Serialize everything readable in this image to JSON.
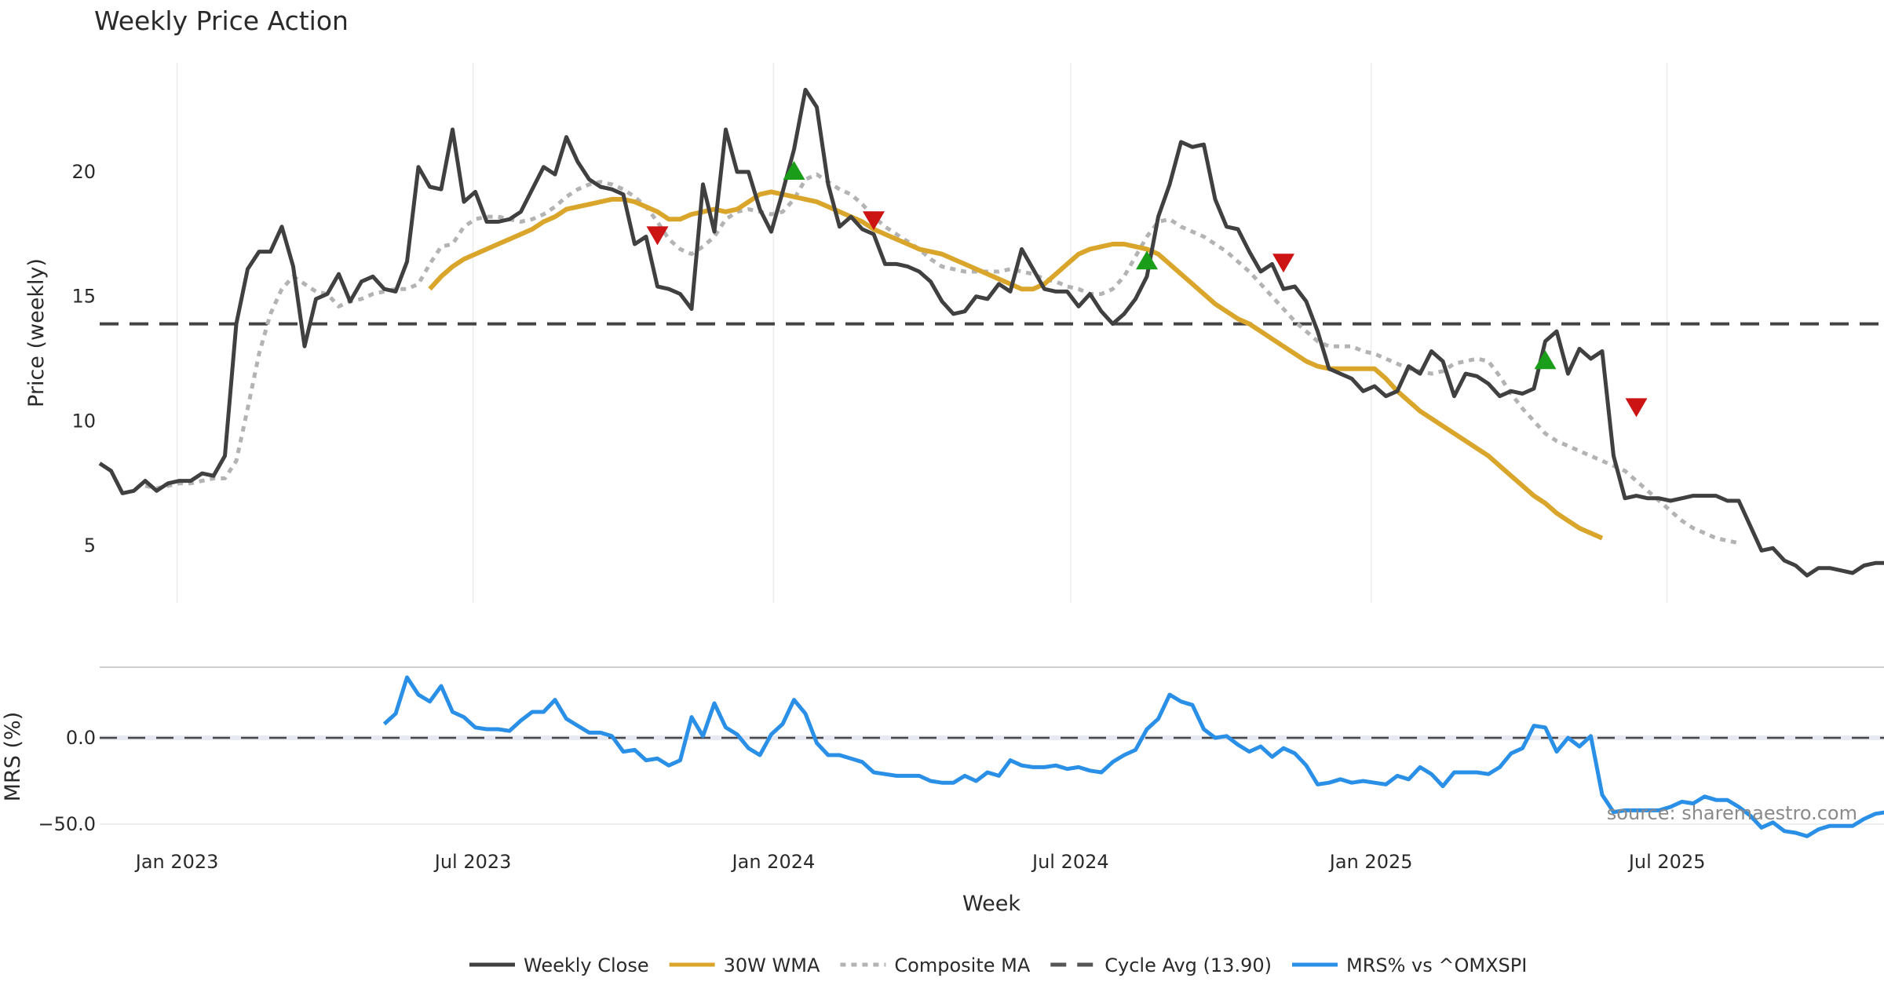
{
  "chart_data": [
    {
      "type": "line",
      "title": "Weekly Price Action",
      "xlabel": "Week",
      "ylabel": "Price (weekly)",
      "ylim": [
        2.5,
        24.2
      ],
      "yticks": [
        "5",
        "10",
        "15",
        "20"
      ],
      "ytick_values": [
        5,
        10,
        15,
        20
      ],
      "xticks": [
        "Jan 2023",
        "Jul 2023",
        "Jan 2024",
        "Jul 2024",
        "Jan 2025",
        "Jul 2025"
      ],
      "xtick_weeks": [
        6.8,
        32.8,
        59.2,
        85.3,
        111.7,
        137.7
      ],
      "x_start": "2022-11-14",
      "x_unit": "week",
      "grid": "vertical",
      "cycle_avg": 13.9,
      "series": [
        {
          "name": "Weekly Close",
          "color": "#404040",
          "style": "solid",
          "start_week": 0,
          "values": [
            8.3,
            8.0,
            7.1,
            7.2,
            7.6,
            7.2,
            7.5,
            7.6,
            7.6,
            7.9,
            7.8,
            8.6,
            13.9,
            16.1,
            16.8,
            16.8,
            17.8,
            16.2,
            13.0,
            14.9,
            15.1,
            15.9,
            14.8,
            15.6,
            15.8,
            15.3,
            15.2,
            16.4,
            20.2,
            19.4,
            19.3,
            21.7,
            18.8,
            19.2,
            18.0,
            18.0,
            18.1,
            18.4,
            19.3,
            20.2,
            19.9,
            21.4,
            20.4,
            19.7,
            19.4,
            19.3,
            19.1,
            17.1,
            17.4,
            15.4,
            15.3,
            15.1,
            14.5,
            19.5,
            17.6,
            21.7,
            20.0,
            20.0,
            18.5,
            17.6,
            19.2,
            20.9,
            23.3,
            22.6,
            19.5,
            17.8,
            18.2,
            17.7,
            17.5,
            16.3,
            16.3,
            16.2,
            16.0,
            15.6,
            14.8,
            14.3,
            14.4,
            15.0,
            14.9,
            15.5,
            15.2,
            16.9,
            16.1,
            15.3,
            15.2,
            15.2,
            14.6,
            15.1,
            14.4,
            13.9,
            14.3,
            14.9,
            15.8,
            18.2,
            19.5,
            21.2,
            21.0,
            21.1,
            18.9,
            17.8,
            17.7,
            16.8,
            16.0,
            16.3,
            15.3,
            15.4,
            14.8,
            13.6,
            12.1,
            11.9,
            11.7,
            11.2,
            11.4,
            11.0,
            11.2,
            12.2,
            11.9,
            12.8,
            12.4,
            11.0,
            11.9,
            11.8,
            11.5,
            11.0,
            11.2,
            11.1,
            11.3,
            13.2,
            13.6,
            11.9,
            12.9,
            12.5,
            12.8,
            8.6,
            6.9,
            7.0,
            6.9,
            6.9,
            6.8,
            6.9,
            7.0,
            7.0,
            7.0,
            6.8,
            6.8,
            5.8,
            4.8,
            4.9,
            4.4,
            4.2,
            3.8,
            4.1,
            4.1,
            4.0,
            3.9,
            4.2,
            4.3,
            4.3
          ]
        },
        {
          "name": "30W WMA",
          "color": "#d9a52b",
          "style": "solid",
          "start_week": 29,
          "values": [
            15.3,
            15.8,
            16.2,
            16.5,
            16.7,
            16.9,
            17.1,
            17.3,
            17.5,
            17.7,
            18.0,
            18.2,
            18.5,
            18.6,
            18.7,
            18.8,
            18.9,
            18.9,
            18.8,
            18.6,
            18.4,
            18.1,
            18.1,
            18.3,
            18.4,
            18.5,
            18.4,
            18.5,
            18.8,
            19.1,
            19.2,
            19.1,
            19.0,
            18.9,
            18.8,
            18.6,
            18.4,
            18.2,
            18.0,
            17.7,
            17.5,
            17.3,
            17.1,
            16.9,
            16.8,
            16.7,
            16.5,
            16.3,
            16.1,
            15.9,
            15.7,
            15.5,
            15.3,
            15.3,
            15.5,
            15.9,
            16.3,
            16.7,
            16.9,
            17.0,
            17.1,
            17.1,
            17.0,
            16.9,
            16.7,
            16.3,
            15.9,
            15.5,
            15.1,
            14.7,
            14.4,
            14.1,
            13.9,
            13.6,
            13.3,
            13.0,
            12.7,
            12.4,
            12.2,
            12.1,
            12.1,
            12.1,
            12.1,
            12.1,
            11.7,
            11.2,
            10.8,
            10.4,
            10.1,
            9.8,
            9.5,
            9.2,
            8.9,
            8.6,
            8.2,
            7.8,
            7.4,
            7.0,
            6.7,
            6.3,
            6.0,
            5.7,
            5.5,
            5.3
          ]
        },
        {
          "name": "Composite MA",
          "color": "#b3b3b3",
          "style": "dotted",
          "start_week": 4,
          "values": [
            7.4,
            7.3,
            7.4,
            7.5,
            7.5,
            7.6,
            7.7,
            7.7,
            8.4,
            10.5,
            12.7,
            14.3,
            15.3,
            15.8,
            15.5,
            15.2,
            15.1,
            14.6,
            14.8,
            14.9,
            15.1,
            15.2,
            15.3,
            15.3,
            15.5,
            16.3,
            17.0,
            17.1,
            17.8,
            18.1,
            18.2,
            18.2,
            18.1,
            18.0,
            18.1,
            18.3,
            18.6,
            19.0,
            19.3,
            19.5,
            19.6,
            19.5,
            19.3,
            19.0,
            18.6,
            18.0,
            17.3,
            16.9,
            16.7,
            17.0,
            17.4,
            18.1,
            18.4,
            18.5,
            18.4,
            18.3,
            18.4,
            18.9,
            19.7,
            19.9,
            19.6,
            19.3,
            19.1,
            18.7,
            18.2,
            17.8,
            17.5,
            17.2,
            16.9,
            16.5,
            16.2,
            16.1,
            16.0,
            16.0,
            16.0,
            16.0,
            16.1,
            16.0,
            15.9,
            15.7,
            15.6,
            15.4,
            15.3,
            15.1,
            15.1,
            15.3,
            15.8,
            16.6,
            17.4,
            18.0,
            18.1,
            17.8,
            17.6,
            17.4,
            17.1,
            16.8,
            16.4,
            16.0,
            15.5,
            15.0,
            14.5,
            14.0,
            13.6,
            13.2,
            13.0,
            13.0,
            13.0,
            12.8,
            12.7,
            12.5,
            12.3,
            12.1,
            12.0,
            11.9,
            12.0,
            12.3,
            12.4,
            12.5,
            12.4,
            11.8,
            11.1,
            10.5,
            10.0,
            9.5,
            9.2,
            9.0,
            8.8,
            8.6,
            8.4,
            8.2,
            8.0,
            7.6,
            7.2,
            6.8,
            6.4,
            6.0,
            5.7,
            5.5,
            5.3,
            5.2,
            5.1
          ]
        },
        {
          "name": "Cycle Avg (13.90)",
          "color": "#444444",
          "style": "dashed",
          "value": 13.9
        }
      ],
      "markers": {
        "buy": {
          "color": "#1a9e1a",
          "points": [
            [
              61,
              20.0
            ],
            [
              92,
              16.4
            ],
            [
              127,
              12.4
            ]
          ]
        },
        "sell": {
          "color": "#cc1414",
          "points": [
            [
              49,
              17.5
            ],
            [
              68,
              18.1
            ],
            [
              104,
              16.4
            ],
            [
              135,
              10.6
            ]
          ]
        }
      }
    },
    {
      "type": "line",
      "xlabel": "Week",
      "ylabel": "MRS (%)",
      "ylim": [
        -58,
        41
      ],
      "yticks": [
        "−50.0",
        "0.0"
      ],
      "ytick_values": [
        -50,
        0
      ],
      "reference_line": 0,
      "series": [
        {
          "name": "MRS% vs ^OMXSPI",
          "color": "#2a8fe6",
          "start_week": 25,
          "values": [
            8,
            14,
            35,
            25,
            21,
            30,
            15,
            12,
            6,
            5,
            5,
            4,
            10,
            15,
            15,
            22,
            11,
            7,
            3,
            3,
            1,
            -8,
            -7,
            -13,
            -12,
            -16,
            -13,
            12,
            1,
            20,
            6,
            2,
            -6,
            -10,
            2,
            8,
            22,
            14,
            -3,
            -10,
            -10,
            -12,
            -14,
            -20,
            -21,
            -22,
            -22,
            -22,
            -25,
            -26,
            -26,
            -22,
            -25,
            -20,
            -22,
            -13,
            -16,
            -17,
            -17,
            -16,
            -18,
            -17,
            -19,
            -20,
            -14,
            -10,
            -7,
            5,
            11,
            25,
            21,
            19,
            5,
            0,
            1,
            -4,
            -8,
            -5,
            -11,
            -6,
            -9,
            -16,
            -27,
            -26,
            -24,
            -26,
            -25,
            -26,
            -27,
            -22,
            -24,
            -17,
            -21,
            -28,
            -20,
            -20,
            -20,
            -21,
            -17,
            -9,
            -6,
            7,
            6,
            -8,
            0,
            -5,
            1,
            -33,
            -43,
            -42,
            -42,
            -42,
            -42,
            -40,
            -37,
            -38,
            -34,
            -36,
            -36,
            -40,
            -45,
            -52,
            -49,
            -54,
            -55,
            -57,
            -53,
            -51,
            -51,
            -51,
            -47,
            -44,
            -43
          ]
        }
      ]
    }
  ],
  "legend": {
    "position": "bottom-center",
    "items": [
      {
        "label": "Weekly Close",
        "color": "#404040",
        "style": "solid"
      },
      {
        "label": "30W WMA",
        "color": "#d9a52b",
        "style": "solid"
      },
      {
        "label": "Composite MA",
        "color": "#b3b3b3",
        "style": "dotted"
      },
      {
        "label": "Cycle Avg (13.90)",
        "color": "#555555",
        "style": "dashed"
      },
      {
        "label": "MRS% vs ^OMXSPI",
        "color": "#2a8fe6",
        "style": "solid"
      }
    ]
  },
  "watermark": "source: sharemaestro.com"
}
